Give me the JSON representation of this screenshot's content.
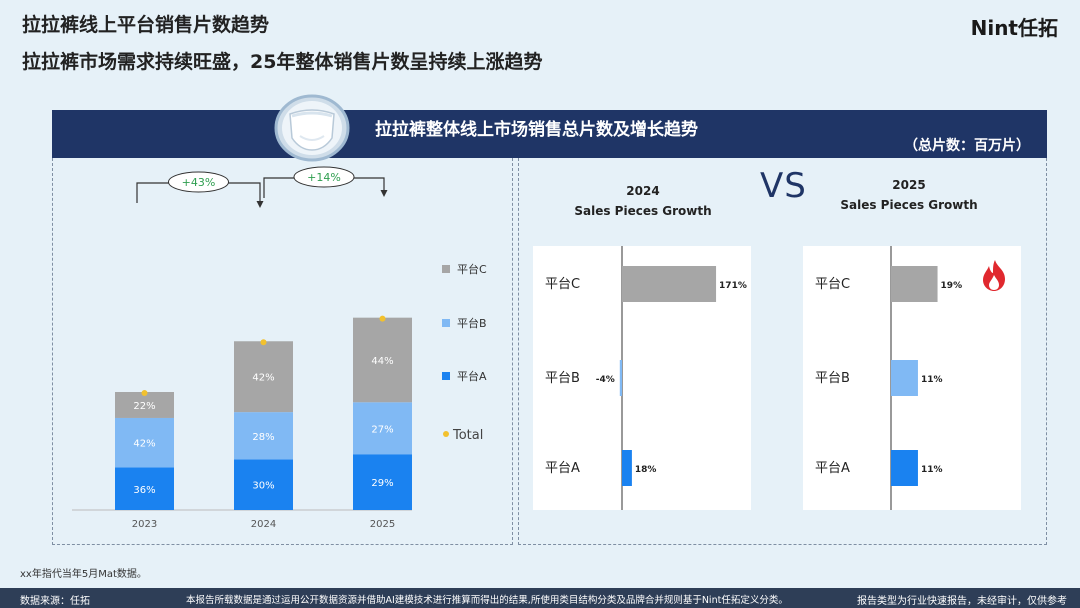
{
  "header": {
    "title": "拉拉裤线上平台销售片数趋势",
    "subtitle": "拉拉裤市场需求持续旺盛，25年整体销售片数呈持续上涨趋势",
    "brand": "Nint任拓"
  },
  "banner": {
    "title": "拉拉裤整体线上市场销售总片数及增长趋势",
    "unit": "（总片数：百万片）"
  },
  "vs_label": "VS",
  "colors": {
    "platformA": "#1a82f0",
    "platformB": "#80b9f4",
    "platformC": "#a6a6a6",
    "total": "#f2c12e",
    "growth_label": "#2e9e4f",
    "banner": "#1f3566",
    "fire": "#e0282e"
  },
  "chart_data": [
    {
      "type": "bar",
      "stacked": true,
      "categories": [
        "2023",
        "2024",
        "2025"
      ],
      "relative_totals": [
        1.0,
        1.43,
        1.63
      ],
      "series": [
        {
          "name": "平台A",
          "values": [
            36,
            30,
            29
          ],
          "labels": [
            "36%",
            "30%",
            "29%"
          ]
        },
        {
          "name": "平台B",
          "values": [
            42,
            28,
            27
          ],
          "labels": [
            "42%",
            "28%",
            "27%"
          ]
        },
        {
          "name": "平台C",
          "values": [
            22,
            42,
            44
          ],
          "labels": [
            "22%",
            "42%",
            "44%"
          ]
        }
      ],
      "total_marker_name": "Total",
      "legend": [
        "平台C",
        "平台B",
        "平台A",
        "Total"
      ],
      "legend_position": "right",
      "growth_annotations": [
        {
          "from": "2023",
          "to": "2024",
          "label": "+43%"
        },
        {
          "from": "2024",
          "to": "2025",
          "label": "+14%"
        }
      ]
    },
    {
      "type": "bar",
      "orientation": "horizontal",
      "title": "2024",
      "subtitle": "Sales Pieces Growth",
      "categories": [
        "平台C",
        "平台B",
        "平台A"
      ],
      "values": [
        171,
        -4,
        18
      ],
      "value_labels": [
        "171%",
        "-4%",
        "18%"
      ]
    },
    {
      "type": "bar",
      "orientation": "horizontal",
      "title": "2025",
      "subtitle": "Sales Pieces Growth",
      "categories": [
        "平台C",
        "平台B",
        "平台A"
      ],
      "values": [
        19,
        11,
        11
      ],
      "value_labels": [
        "19%",
        "11%",
        "11%"
      ],
      "annotation_icon": "fire-icon"
    }
  ],
  "footnote": "xx年指代当年5月Mat数据。",
  "footer": {
    "source": "数据来源：任拓",
    "disclaimer": "本报告所载数据是通过运用公开数据资源并借助AI建模技术进行推算而得出的结果,所使用类目结构分类及品牌合并规则基于Nint任拓定义分类。",
    "note": "报告类型为行业快速报告，未经审计，仅供参考"
  }
}
